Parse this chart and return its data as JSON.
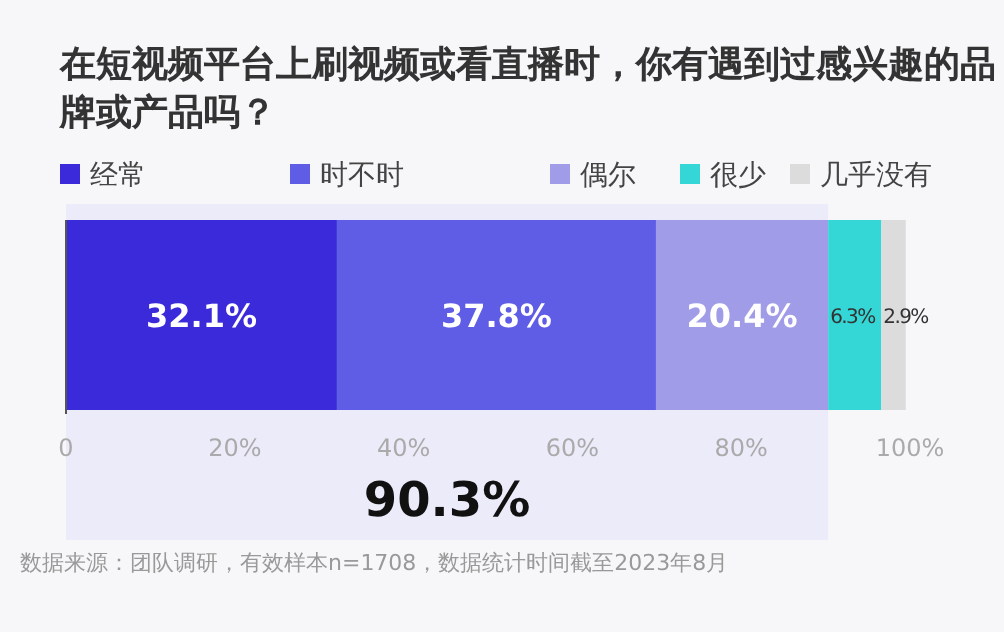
{
  "chart_data": {
    "type": "bar",
    "orientation": "horizontal",
    "stacked": true,
    "title": "在短视频平台上刷视频或看直播时，你有遇到过感兴趣的品牌或产品吗？",
    "categories": [
      null
    ],
    "series": [
      {
        "name": "经常",
        "color": "#3a2ad9",
        "values": [
          32.1
        ],
        "value_labels": [
          "32.1%"
        ]
      },
      {
        "name": "时不时",
        "color": "#5f5ce6",
        "values": [
          37.8
        ],
        "value_labels": [
          "37.8%"
        ]
      },
      {
        "name": "偶尔",
        "color": "#a09ce8",
        "values": [
          20.4
        ],
        "value_labels": [
          "20.4%"
        ]
      },
      {
        "name": "很少",
        "color": "#34d6d6",
        "values": [
          6.3
        ],
        "value_labels": [
          "6.3%"
        ]
      },
      {
        "name": "几乎没有",
        "color": "#dcdcdc",
        "values": [
          2.9
        ],
        "value_labels": [
          "2.9%"
        ]
      }
    ],
    "xlim": [
      0,
      100
    ],
    "xticks": [
      0,
      {
        "value": 20,
        "label": "20%"
      },
      {
        "value": 40,
        "label": "40%"
      },
      {
        "value": 60,
        "label": "60%"
      },
      {
        "value": 80,
        "label": "80%"
      },
      {
        "value": 100,
        "label": "100%"
      }
    ],
    "bands": [
      {
        "axis": "x",
        "from": 0,
        "to": 90.3,
        "label": "90.3%",
        "color": "#ecebfa"
      }
    ],
    "legend": "top",
    "grid": false,
    "annotations": [
      "数据来源：团队调研，有效样本n=1708，数据统计时间截至2023年8月"
    ]
  }
}
